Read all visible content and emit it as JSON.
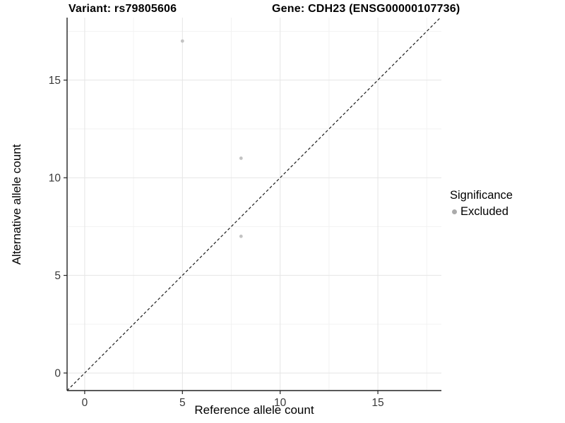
{
  "header": {
    "variant_title": "Variant: rs79805606",
    "gene_title": "Gene: CDH23 (ENSG00000107736)"
  },
  "legend": {
    "title": "Significance",
    "items": [
      {
        "label": "Excluded",
        "swatch": "gray-dot-icon",
        "color": "#ababab"
      }
    ]
  },
  "chart_data": {
    "type": "scatter",
    "title": "Variant: rs79805606 | Gene: CDH23 (ENSG00000107736)",
    "xlabel": "Reference allele count",
    "ylabel": "Alternative allele count",
    "series": [
      {
        "name": "Excluded",
        "color": "#c3c3c3",
        "points": [
          {
            "x": 5,
            "y": 17
          },
          {
            "x": 8,
            "y": 11
          },
          {
            "x": 8,
            "y": 7
          }
        ]
      }
    ],
    "identity_line": {
      "slope": 1,
      "intercept": 0,
      "style": "dashed",
      "color": "#1c1c1c"
    },
    "xlim": [
      -0.9,
      18.25
    ],
    "ylim": [
      -0.9,
      18.2
    ],
    "x_major_ticks": [
      0,
      5,
      10,
      15
    ],
    "y_major_ticks": [
      0,
      5,
      10,
      15
    ],
    "x_minor_ticks": [
      2.5,
      7.5,
      12.5,
      17.5
    ],
    "y_minor_ticks": [
      2.5,
      7.5,
      12.5,
      17.5
    ],
    "grid": "major+minor",
    "legend_position": "right-middle"
  },
  "colors": {
    "background": "#ffffff",
    "grid_major": "#e5e5e5",
    "grid_minor": "#f2f2f2",
    "axis_line": "#222222",
    "tick_label": "#383838",
    "point": "#c3c3c3",
    "legend_dot": "#ababab"
  },
  "point_radius": 2.4
}
